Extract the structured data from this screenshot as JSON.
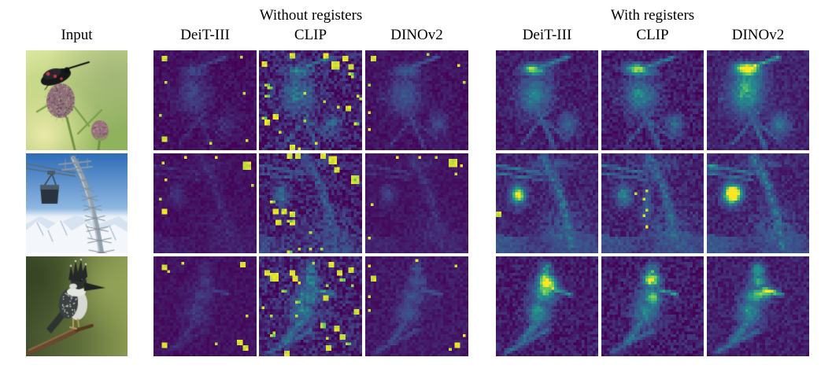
{
  "header": {
    "without_label": "Without registers",
    "with_label": "With registers"
  },
  "columns": [
    {
      "label": "Input"
    },
    {
      "label": "DeiT-III",
      "group": "without"
    },
    {
      "label": "CLIP",
      "group": "without"
    },
    {
      "label": "DINOv2",
      "group": "without"
    },
    {
      "label": "DeiT-III",
      "group": "with"
    },
    {
      "label": "CLIP",
      "group": "with"
    },
    {
      "label": "DINOv2",
      "group": "with"
    }
  ],
  "rows": [
    {
      "scene": "moth",
      "description": "black burnet moth on purple thistle flower, green background"
    },
    {
      "scene": "pylon",
      "description": "cable car and lattice pylon against blue sky over snowy mountains"
    },
    {
      "scene": "bird",
      "description": "crested kingfisher perched on a branch, green blurred background"
    }
  ],
  "colormap": {
    "name": "viridis",
    "stops": [
      "#440154",
      "#414487",
      "#31688e",
      "#21918c",
      "#5ec962",
      "#fde725"
    ]
  },
  "panels": [
    {
      "kind": "photo",
      "name": "input-photo-moth",
      "scene": "moth",
      "row": 0,
      "col": 0
    },
    {
      "kind": "photo",
      "name": "input-photo-pylon",
      "scene": "pylon",
      "row": 1,
      "col": 0
    },
    {
      "kind": "photo",
      "name": "input-photo-bird",
      "scene": "bird",
      "row": 2,
      "col": 0
    },
    {
      "kind": "attn",
      "name": "attn-deit3-noreg-row1",
      "model": "DeiT-III",
      "group": "without",
      "scene": "moth",
      "row": 0,
      "col": 1,
      "seed": 11,
      "bg": 0.045,
      "strength": 0.22,
      "noise": 0.05,
      "artifacts": 0,
      "spots": [
        [
          0.07,
          0.07,
          2
        ],
        [
          0.1,
          0.3,
          1
        ],
        [
          0.86,
          0.06,
          1
        ],
        [
          0.89,
          0.44,
          1
        ],
        [
          0.06,
          0.66,
          1
        ],
        [
          0.08,
          0.88,
          2
        ],
        [
          0.55,
          0.94,
          1
        ],
        [
          0.93,
          0.9,
          1
        ]
      ],
      "highlights": []
    },
    {
      "kind": "attn",
      "name": "attn-clip-noreg-row1",
      "model": "CLIP",
      "group": "without",
      "scene": "moth",
      "row": 0,
      "col": 2,
      "seed": 12,
      "bg": 0.09,
      "strength": 0.5,
      "noise": 0.13,
      "artifacts": 14,
      "spots": [
        [
          0.04,
          0.12,
          2
        ],
        [
          0.3,
          0.03,
          2
        ],
        [
          0.64,
          0.02,
          2
        ],
        [
          0.72,
          0.1,
          3
        ],
        [
          0.82,
          0.06,
          2
        ],
        [
          0.88,
          0.14,
          2
        ],
        [
          0.93,
          0.25,
          1
        ],
        [
          0.13,
          0.66,
          2
        ],
        [
          0.06,
          0.71,
          2
        ],
        [
          0.86,
          0.56,
          2
        ],
        [
          0.3,
          0.97,
          2
        ],
        [
          0.56,
          0.95,
          1
        ],
        [
          0.97,
          0.45,
          1
        ]
      ],
      "highlights": []
    },
    {
      "kind": "attn",
      "name": "attn-dinov2-noreg-row1",
      "model": "DINOv2",
      "group": "without",
      "scene": "moth",
      "row": 0,
      "col": 3,
      "seed": 13,
      "bg": 0.055,
      "strength": 0.34,
      "noise": 0.05,
      "artifacts": 0,
      "spots": [
        [
          0.05,
          0.05,
          2
        ],
        [
          0.02,
          0.35,
          1
        ],
        [
          0.02,
          0.62,
          1
        ],
        [
          0.02,
          0.8,
          1
        ],
        [
          0.93,
          0.13,
          1
        ],
        [
          0.96,
          0.3,
          1
        ],
        [
          0.6,
          0.03,
          1
        ]
      ],
      "highlights": []
    },
    {
      "kind": "attn",
      "name": "attn-deit3-reg-row1",
      "model": "DeiT-III",
      "group": "with",
      "scene": "moth",
      "row": 0,
      "col": 4,
      "seed": 14,
      "bg": 0.08,
      "strength": 0.62,
      "noise": 0.07,
      "artifacts": 0,
      "spots": [],
      "highlights": [
        {
          "u": 0.34,
          "v": 0.18,
          "ru": 0.08,
          "rv": 0.045,
          "amp": 0.5
        }
      ]
    },
    {
      "kind": "attn",
      "name": "attn-clip-reg-row1",
      "model": "CLIP",
      "group": "with",
      "scene": "moth",
      "row": 0,
      "col": 5,
      "seed": 15,
      "bg": 0.08,
      "strength": 0.62,
      "noise": 0.09,
      "artifacts": 0,
      "spots": [],
      "highlights": [
        {
          "u": 0.32,
          "v": 0.18,
          "ru": 0.09,
          "rv": 0.05,
          "amp": 0.55
        }
      ]
    },
    {
      "kind": "attn",
      "name": "attn-dinov2-reg-row1",
      "model": "DINOv2",
      "group": "with",
      "scene": "moth",
      "row": 0,
      "col": 6,
      "seed": 16,
      "bg": 0.1,
      "strength": 0.78,
      "noise": 0.07,
      "artifacts": 0,
      "spots": [],
      "highlights": [
        {
          "u": 0.38,
          "v": 0.17,
          "ru": 0.12,
          "rv": 0.05,
          "amp": 0.6
        },
        {
          "u": 0.42,
          "v": 0.3,
          "ru": 0.14,
          "rv": 0.1,
          "amp": 0.25
        }
      ]
    },
    {
      "kind": "attn",
      "name": "attn-deit3-noreg-row2",
      "model": "DeiT-III",
      "group": "without",
      "scene": "pylon",
      "row": 1,
      "col": 1,
      "seed": 21,
      "bg": 0.045,
      "strength": 0.14,
      "noise": 0.04,
      "artifacts": 0,
      "spots": [
        [
          0.88,
          0.08,
          3
        ],
        [
          0.07,
          0.08,
          1
        ],
        [
          0.1,
          0.27,
          1
        ],
        [
          0.06,
          0.46,
          1
        ],
        [
          0.08,
          0.57,
          2
        ],
        [
          0.3,
          0.03,
          1
        ],
        [
          0.6,
          0.03,
          1
        ],
        [
          0.97,
          0.3,
          1
        ]
      ],
      "highlights": []
    },
    {
      "kind": "attn",
      "name": "attn-clip-noreg-row2",
      "model": "CLIP",
      "group": "without",
      "scene": "pylon",
      "row": 1,
      "col": 2,
      "seed": 22,
      "bg": 0.08,
      "strength": 0.42,
      "noise": 0.11,
      "artifacts": 6,
      "spots": [
        [
          0.28,
          0.01,
          2
        ],
        [
          0.36,
          0.01,
          2
        ],
        [
          0.62,
          0.01,
          2
        ],
        [
          0.7,
          0.03,
          3
        ],
        [
          0.74,
          0.15,
          2
        ],
        [
          0.93,
          0.22,
          3
        ],
        [
          0.15,
          0.57,
          2
        ],
        [
          0.22,
          0.58,
          2
        ],
        [
          0.3,
          0.6,
          2
        ],
        [
          0.3,
          0.68,
          2
        ],
        [
          0.17,
          0.68,
          2
        ],
        [
          0.5,
          0.98,
          1
        ],
        [
          0.6,
          0.96,
          1
        ],
        [
          0.4,
          0.98,
          1
        ]
      ],
      "highlights": []
    },
    {
      "kind": "attn",
      "name": "attn-dinov2-noreg-row2",
      "model": "DINOv2",
      "group": "without",
      "scene": "pylon",
      "row": 1,
      "col": 3,
      "seed": 23,
      "bg": 0.055,
      "strength": 0.17,
      "noise": 0.04,
      "artifacts": 0,
      "spots": [
        [
          0.84,
          0.06,
          3
        ],
        [
          0.7,
          0.04,
          1
        ],
        [
          0.9,
          0.2,
          1
        ],
        [
          0.95,
          0.12,
          1
        ],
        [
          0.05,
          0.5,
          1
        ],
        [
          0.04,
          0.86,
          1
        ],
        [
          0.3,
          0.03,
          1
        ],
        [
          0.53,
          0.02,
          1
        ]
      ],
      "highlights": []
    },
    {
      "kind": "attn",
      "name": "attn-deit3-reg-row2",
      "model": "DeiT-III",
      "group": "with",
      "scene": "pylon",
      "row": 1,
      "col": 4,
      "seed": 24,
      "bg": 0.1,
      "strength": 0.6,
      "noise": 0.07,
      "artifacts": 0,
      "spots": [
        [
          0.01,
          0.6,
          2
        ]
      ],
      "highlights": [
        {
          "u": 0.22,
          "v": 0.41,
          "ru": 0.06,
          "rv": 0.07,
          "amp": 0.5
        }
      ]
    },
    {
      "kind": "attn",
      "name": "attn-clip-reg-row2",
      "model": "CLIP",
      "group": "with",
      "scene": "pylon",
      "row": 1,
      "col": 5,
      "seed": 25,
      "bg": 0.1,
      "strength": 0.58,
      "noise": 0.08,
      "artifacts": 0,
      "spots": [
        [
          0.44,
          0.36,
          1
        ],
        [
          0.42,
          0.46,
          1
        ],
        [
          0.44,
          0.56,
          1
        ],
        [
          0.41,
          0.64,
          1
        ],
        [
          0.45,
          0.73,
          1
        ],
        [
          0.33,
          0.4,
          1
        ]
      ],
      "highlights": [
        {
          "u": 0.45,
          "v": 0.5,
          "ru": 0.04,
          "rv": 0.18,
          "amp": 0.28
        }
      ]
    },
    {
      "kind": "attn",
      "name": "attn-dinov2-reg-row2",
      "model": "DINOv2",
      "group": "with",
      "scene": "pylon",
      "row": 1,
      "col": 6,
      "seed": 26,
      "bg": 0.1,
      "strength": 0.62,
      "noise": 0.07,
      "artifacts": 0,
      "spots": [],
      "highlights": [
        {
          "u": 0.27,
          "v": 0.4,
          "ru": 0.08,
          "rv": 0.09,
          "amp": 0.95
        },
        {
          "u": 0.05,
          "v": 0.15,
          "ru": 0.06,
          "rv": 0.04,
          "amp": 0.3
        }
      ]
    },
    {
      "kind": "attn",
      "name": "attn-deit3-noreg-row3",
      "model": "DeiT-III",
      "group": "without",
      "scene": "bird",
      "row": 2,
      "col": 1,
      "seed": 31,
      "bg": 0.05,
      "strength": 0.17,
      "noise": 0.04,
      "artifacts": 0,
      "spots": [
        [
          0.08,
          0.08,
          2
        ],
        [
          0.15,
          0.15,
          1
        ],
        [
          0.85,
          0.06,
          2
        ],
        [
          0.07,
          0.88,
          2
        ],
        [
          0.84,
          0.86,
          2
        ],
        [
          0.88,
          0.92,
          2
        ],
        [
          0.6,
          0.89,
          1
        ],
        [
          0.27,
          0.07,
          1
        ],
        [
          0.92,
          0.6,
          1
        ]
      ],
      "highlights": []
    },
    {
      "kind": "attn",
      "name": "attn-clip-noreg-row3",
      "model": "CLIP",
      "group": "without",
      "scene": "bird",
      "row": 2,
      "col": 2,
      "seed": 32,
      "bg": 0.1,
      "strength": 0.6,
      "noise": 0.12,
      "artifacts": 16,
      "spots": [
        [
          0.05,
          0.14,
          2
        ],
        [
          0.1,
          0.17,
          3
        ],
        [
          0.3,
          0.14,
          2
        ],
        [
          0.34,
          0.2,
          2
        ],
        [
          0.7,
          0.07,
          2
        ],
        [
          0.78,
          0.15,
          2
        ],
        [
          0.64,
          0.4,
          2
        ],
        [
          0.75,
          0.72,
          2
        ],
        [
          0.8,
          0.79,
          2
        ],
        [
          0.68,
          0.9,
          2
        ],
        [
          0.25,
          0.96,
          2
        ],
        [
          0.1,
          0.6,
          1
        ],
        [
          0.95,
          0.55,
          2
        ],
        [
          0.9,
          0.1,
          2
        ]
      ],
      "highlights": []
    },
    {
      "kind": "attn",
      "name": "attn-dinov2-noreg-row3",
      "model": "DINOv2",
      "group": "without",
      "scene": "bird",
      "row": 2,
      "col": 3,
      "seed": 33,
      "bg": 0.07,
      "strength": 0.28,
      "noise": 0.05,
      "artifacts": 0,
      "spots": [
        [
          0.04,
          0.08,
          1
        ],
        [
          0.06,
          0.2,
          2
        ],
        [
          0.03,
          0.4,
          1
        ],
        [
          0.03,
          0.55,
          1
        ],
        [
          0.88,
          0.08,
          1
        ],
        [
          0.9,
          0.88,
          2
        ],
        [
          0.83,
          0.93,
          1
        ],
        [
          0.96,
          0.8,
          1
        ],
        [
          0.5,
          0.03,
          1
        ]
      ],
      "highlights": []
    },
    {
      "kind": "attn",
      "name": "attn-deit3-reg-row3",
      "model": "DeiT-III",
      "group": "with",
      "scene": "bird",
      "row": 2,
      "col": 4,
      "seed": 34,
      "bg": 0.08,
      "strength": 0.72,
      "noise": 0.08,
      "artifacts": 0,
      "spots": [],
      "highlights": [
        {
          "u": 0.5,
          "v": 0.3,
          "ru": 0.1,
          "rv": 0.07,
          "amp": 0.55
        },
        {
          "u": 0.47,
          "v": 0.2,
          "ru": 0.07,
          "rv": 0.06,
          "amp": 0.35
        }
      ]
    },
    {
      "kind": "attn",
      "name": "attn-clip-reg-row3",
      "model": "CLIP",
      "group": "with",
      "scene": "bird",
      "row": 2,
      "col": 5,
      "seed": 35,
      "bg": 0.08,
      "strength": 0.68,
      "noise": 0.09,
      "artifacts": 0,
      "spots": [],
      "highlights": [
        {
          "u": 0.48,
          "v": 0.22,
          "ru": 0.08,
          "rv": 0.07,
          "amp": 0.5
        },
        {
          "u": 0.52,
          "v": 0.45,
          "ru": 0.05,
          "rv": 0.1,
          "amp": 0.3
        }
      ]
    },
    {
      "kind": "attn",
      "name": "attn-dinov2-reg-row3",
      "model": "DINOv2",
      "group": "with",
      "scene": "bird",
      "row": 2,
      "col": 6,
      "seed": 36,
      "bg": 0.09,
      "strength": 0.72,
      "noise": 0.07,
      "artifacts": 0,
      "spots": [],
      "highlights": [
        {
          "u": 0.58,
          "v": 0.36,
          "ru": 0.09,
          "rv": 0.05,
          "amp": 0.6
        },
        {
          "u": 0.5,
          "v": 0.15,
          "ru": 0.06,
          "rv": 0.05,
          "amp": 0.3
        }
      ]
    }
  ]
}
